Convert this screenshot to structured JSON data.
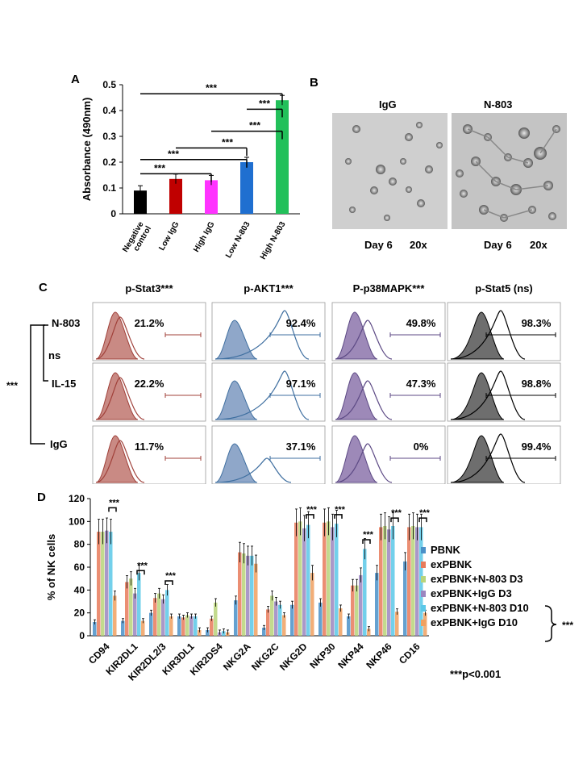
{
  "panels": {
    "a": "A",
    "b": "B",
    "c": "C",
    "d": "D"
  },
  "chart_a": {
    "type": "bar",
    "ylabel": "Absorbance (490nm)",
    "ylim": [
      0,
      0.5
    ],
    "yticks": [
      "0",
      "0.1",
      "0.2",
      "0.3",
      "0.4",
      "0.5"
    ],
    "categories": [
      "Negative control",
      "Low IgG",
      "High IgG",
      "Low N-803",
      "High N-803"
    ],
    "cat_lines": [
      [
        "Negative",
        "control"
      ],
      [
        "Low IgG"
      ],
      [
        "High IgG"
      ],
      [
        "Low N-803"
      ],
      [
        "High N-803"
      ]
    ],
    "values": [
      0.09,
      0.135,
      0.13,
      0.2,
      0.44
    ],
    "colors": [
      "#000000",
      "#c00000",
      "#ff33ff",
      "#1f6fd0",
      "#22c05a"
    ],
    "sig": "***"
  },
  "panel_b": {
    "igg_title": "IgG",
    "n803_title": "N-803",
    "igg_caption_day": "Day 6",
    "igg_caption_mag": "20x",
    "n803_caption_day": "Day 6",
    "n803_caption_mag": "20x"
  },
  "panel_c": {
    "columns": [
      {
        "title": "p-Stat3***",
        "color": "#a0413a",
        "fill": "#c98a84"
      },
      {
        "title": "p-AKT1***",
        "color": "#3f6fa0",
        "fill": "#8fa7c9"
      },
      {
        "title": "P-p38MAPK***",
        "color": "#5d4a85",
        "fill": "#9d89b8"
      },
      {
        "title": "p-Stat5 (ns)",
        "color": "#000000",
        "fill": "#6e6e6e"
      }
    ],
    "rows": [
      {
        "label": "N-803",
        "values": [
          "21.2%",
          "92.4%",
          "49.8%",
          "98.3%"
        ]
      },
      {
        "label": "IL-15",
        "values": [
          "22.2%",
          "97.1%",
          "47.3%",
          "98.8%"
        ]
      },
      {
        "label": "IgG",
        "values": [
          "11.7%",
          "37.1%",
          "0%",
          "99.4%"
        ]
      }
    ],
    "ns": "ns",
    "sig": "***"
  },
  "chart_d": {
    "type": "bar",
    "ylabel": "% of NK cells",
    "ylim": [
      0,
      120
    ],
    "yticks": [
      "0",
      "20",
      "40",
      "60",
      "80",
      "100",
      "120"
    ],
    "categories": [
      "CD94",
      "KIR2DL1",
      "KIR2DL2/3",
      "KIR3DL1",
      "KIR2DS4",
      "NKG2A",
      "NKG2C",
      "NKG2D",
      "NKP30",
      "NKP44",
      "NKP46",
      "CD16"
    ],
    "series": [
      {
        "name": "PBNK",
        "color": "#4a90c8",
        "values": [
          12,
          13,
          20,
          17,
          5,
          31,
          7,
          27,
          29,
          17,
          55,
          65
        ]
      },
      {
        "name": "exPBNK",
        "color": "#e87a5a",
        "values": [
          91,
          47,
          33,
          16,
          15,
          73,
          23,
          99,
          99,
          44,
          95,
          95
        ]
      },
      {
        "name": "exPBNK+N-803 D3",
        "color": "#b9d47a",
        "values": [
          91,
          50,
          37,
          18,
          29,
          72,
          35,
          100,
          100,
          44,
          96,
          96
        ]
      },
      {
        "name": "exPBNK+IgG D3",
        "color": "#9b86c0",
        "values": [
          92,
          37,
          32,
          17,
          3,
          70,
          30,
          94,
          95,
          53,
          93,
          95
        ]
      },
      {
        "name": "exPBNK+N-803 D10",
        "color": "#5bc8e8",
        "values": [
          91,
          55,
          40,
          17,
          4,
          70,
          27,
          97,
          98,
          76,
          96,
          95
        ]
      },
      {
        "name": "exPBNK+IgG D10",
        "color": "#f0a060",
        "values": [
          35,
          13,
          17,
          5,
          3,
          63,
          18,
          55,
          24,
          6,
          21,
          20
        ]
      }
    ],
    "sig": "***",
    "pnote": "***p<0.001"
  }
}
